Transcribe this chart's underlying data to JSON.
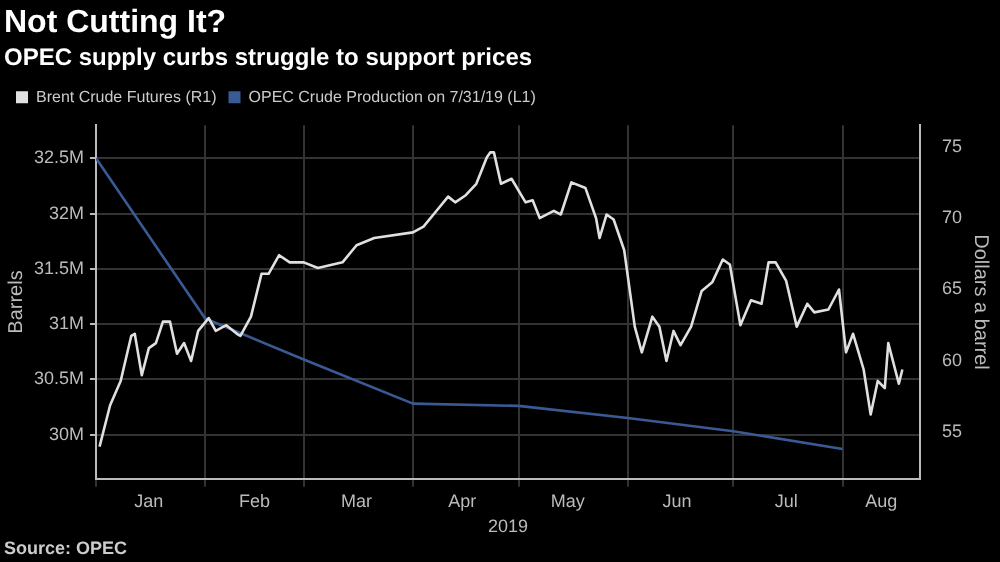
{
  "chart_data": {
    "type": "line",
    "title": "Not Cutting It?",
    "subtitle": "OPEC supply curbs struggle to support prices",
    "xlabel": "2019",
    "ylabel": "Barrels",
    "y2label": "Dollars a barrel",
    "annotations": [
      "Source: OPEC"
    ],
    "xlim": [
      "2019-01-01",
      "2019-08-23"
    ],
    "xticks": [
      {
        "value": "2019-01-01",
        "label": null
      },
      {
        "value": "2019-01-16",
        "label": "Jan"
      },
      {
        "value": "2019-02-01",
        "label": null
      },
      {
        "value": "2019-02-15",
        "label": "Feb"
      },
      {
        "value": "2019-03-01",
        "label": null
      },
      {
        "value": "2019-03-16",
        "label": "Mar"
      },
      {
        "value": "2019-04-01",
        "label": null
      },
      {
        "value": "2019-04-15",
        "label": "Apr"
      },
      {
        "value": "2019-05-01",
        "label": null
      },
      {
        "value": "2019-05-15",
        "label": "May"
      },
      {
        "value": "2019-06-01",
        "label": null
      },
      {
        "value": "2019-06-15",
        "label": "Jun"
      },
      {
        "value": "2019-07-01",
        "label": null
      },
      {
        "value": "2019-07-16",
        "label": "Jul"
      },
      {
        "value": "2019-08-01",
        "label": null
      },
      {
        "value": "2019-08-12",
        "label": "Aug"
      }
    ],
    "ylim": [
      29600000,
      32800000
    ],
    "yticks": [
      {
        "value": 30000000,
        "label": "30M"
      },
      {
        "value": 30500000,
        "label": "30.5M"
      },
      {
        "value": 31000000,
        "label": "31M"
      },
      {
        "value": 31500000,
        "label": "31.5M"
      },
      {
        "value": 32000000,
        "label": "32M"
      },
      {
        "value": 32500000,
        "label": "32.5M"
      }
    ],
    "y2lim": [
      51.75,
      76.5
    ],
    "y2ticks": [
      55,
      60,
      65,
      70,
      75
    ],
    "grid": true,
    "legend": "top left",
    "marker": "none",
    "line_style": "solid",
    "series": [
      {
        "name": "Brent Crude Futures (R1)",
        "color": "#e0e0e0",
        "axis": "y2",
        "x": [
          "2019-01-02",
          "2019-01-05",
          "2019-01-08",
          "2019-01-11",
          "2019-01-12",
          "2019-01-14",
          "2019-01-16",
          "2019-01-18",
          "2019-01-20",
          "2019-01-22",
          "2019-01-24",
          "2019-01-26",
          "2019-01-28",
          "2019-01-30",
          "2019-02-02",
          "2019-02-04",
          "2019-02-07",
          "2019-02-10",
          "2019-02-11",
          "2019-02-14",
          "2019-02-17",
          "2019-02-19",
          "2019-02-22",
          "2019-02-25",
          "2019-03-01",
          "2019-03-05",
          "2019-03-12",
          "2019-03-16",
          "2019-03-21",
          "2019-04-01",
          "2019-04-04",
          "2019-04-08",
          "2019-04-11",
          "2019-04-13",
          "2019-04-16",
          "2019-04-19",
          "2019-04-22",
          "2019-04-23",
          "2019-04-24",
          "2019-04-26",
          "2019-04-29",
          "2019-05-03",
          "2019-05-05",
          "2019-05-07",
          "2019-05-11",
          "2019-05-13",
          "2019-05-16",
          "2019-05-20",
          "2019-05-23",
          "2019-05-24",
          "2019-05-26",
          "2019-05-28",
          "2019-05-31",
          "2019-06-03",
          "2019-06-05",
          "2019-06-08",
          "2019-06-10",
          "2019-06-12",
          "2019-06-14",
          "2019-06-16",
          "2019-06-19",
          "2019-06-22",
          "2019-06-25",
          "2019-06-28",
          "2019-06-30",
          "2019-07-03",
          "2019-07-06",
          "2019-07-09",
          "2019-07-11",
          "2019-07-13",
          "2019-07-16",
          "2019-07-19",
          "2019-07-22",
          "2019-07-24",
          "2019-07-28",
          "2019-07-31",
          "2019-08-02",
          "2019-08-04",
          "2019-08-07",
          "2019-08-09",
          "2019-08-11",
          "2019-08-13",
          "2019-08-14",
          "2019-08-17",
          "2019-08-18"
        ],
        "values": [
          54.0,
          56.9,
          58.6,
          61.75,
          61.9,
          59.0,
          60.9,
          61.25,
          62.75,
          62.75,
          60.5,
          61.25,
          60.0,
          62.1,
          63.0,
          62.1,
          62.5,
          61.9,
          61.75,
          63.1,
          66.1,
          66.1,
          67.4,
          66.9,
          66.9,
          66.5,
          66.9,
          68.1,
          68.6,
          69.0,
          69.4,
          70.6,
          71.5,
          71.1,
          71.6,
          72.4,
          74.25,
          74.6,
          74.6,
          72.4,
          72.75,
          71.1,
          71.25,
          70.0,
          70.5,
          70.25,
          72.5,
          72.1,
          70.0,
          68.6,
          70.25,
          69.9,
          67.75,
          62.4,
          60.6,
          63.1,
          62.4,
          60.0,
          62.1,
          61.1,
          62.4,
          64.9,
          65.5,
          67.1,
          66.75,
          62.5,
          64.25,
          64.0,
          66.9,
          66.9,
          65.6,
          62.4,
          64.0,
          63.4,
          63.6,
          65.0,
          60.6,
          61.9,
          59.4,
          56.25,
          58.6,
          58.1,
          61.25,
          58.4,
          59.4
        ]
      },
      {
        "name": "OPEC Crude Production on 7/31/19 (L1)",
        "color": "#3a5a96",
        "x": [
          "2019-01-01",
          "2019-02-01",
          "2019-03-01",
          "2019-04-01",
          "2019-05-01",
          "2019-06-01",
          "2019-07-01",
          "2019-08-01"
        ],
        "values": [
          32500000,
          31050000,
          30680000,
          30280000,
          30260000,
          30150000,
          30030000,
          29870000
        ]
      }
    ]
  }
}
